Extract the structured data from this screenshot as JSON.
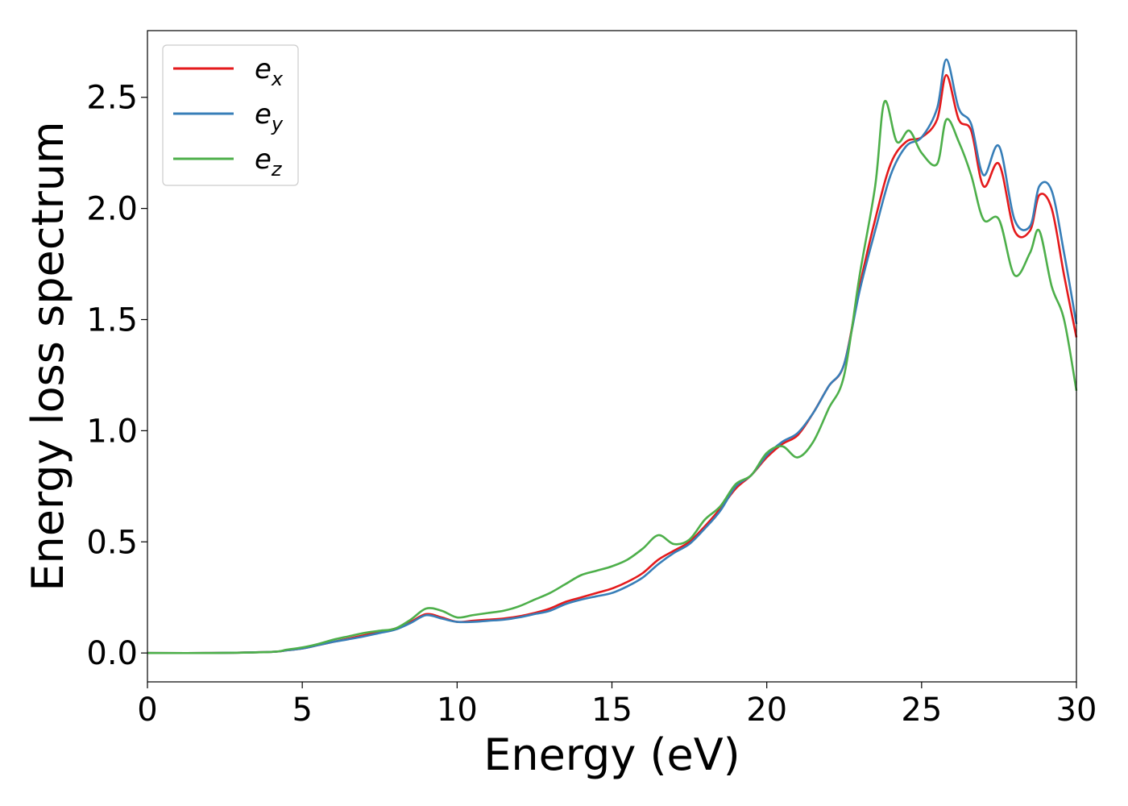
{
  "chart_data": {
    "type": "line",
    "xlabel": "Energy (eV)",
    "ylabel": "Energy loss spectrum",
    "xlim": [
      0,
      30
    ],
    "ylim": [
      -0.13,
      2.8
    ],
    "xticks": [
      "0",
      "5",
      "10",
      "15",
      "20",
      "25",
      "30"
    ],
    "yticks": [
      "0.0",
      "0.5",
      "1.0",
      "1.5",
      "2.0",
      "2.5"
    ],
    "grid": false,
    "legend_position": "top-left",
    "series": [
      {
        "name": "e",
        "sub": "x",
        "color": "#e41a1c",
        "x": [
          0,
          2,
          4,
          4.5,
          5,
          5.5,
          6,
          6.5,
          7,
          7.5,
          8,
          8.5,
          9,
          9.5,
          10,
          10.5,
          11,
          11.5,
          12,
          12.5,
          13,
          13.5,
          14,
          14.5,
          15,
          15.5,
          16,
          16.5,
          17,
          17.5,
          18,
          18.5,
          19,
          19.5,
          20,
          20.5,
          21,
          21.5,
          22,
          22.5,
          23,
          23.5,
          24,
          24.5,
          25,
          25.5,
          25.8,
          26.2,
          26.6,
          27,
          27.5,
          28,
          28.5,
          28.8,
          29.2,
          29.6,
          30
        ],
        "y": [
          0,
          0,
          0.005,
          0.012,
          0.02,
          0.035,
          0.05,
          0.065,
          0.08,
          0.095,
          0.11,
          0.14,
          0.175,
          0.16,
          0.14,
          0.145,
          0.15,
          0.155,
          0.165,
          0.18,
          0.2,
          0.23,
          0.25,
          0.27,
          0.29,
          0.32,
          0.36,
          0.42,
          0.46,
          0.5,
          0.57,
          0.65,
          0.74,
          0.8,
          0.88,
          0.94,
          0.98,
          1.08,
          1.2,
          1.3,
          1.65,
          1.95,
          2.2,
          2.3,
          2.32,
          2.4,
          2.6,
          2.4,
          2.35,
          2.1,
          2.2,
          1.9,
          1.9,
          2.06,
          2.0,
          1.7,
          1.42
        ]
      },
      {
        "name": "e",
        "sub": "y",
        "color": "#377eb8",
        "x": [
          0,
          2,
          4,
          4.5,
          5,
          5.5,
          6,
          6.5,
          7,
          7.5,
          8,
          8.5,
          9,
          9.5,
          10,
          10.5,
          11,
          11.5,
          12,
          12.5,
          13,
          13.5,
          14,
          14.5,
          15,
          15.5,
          16,
          16.5,
          17,
          17.5,
          18,
          18.5,
          19,
          19.5,
          20,
          20.5,
          21,
          21.5,
          22,
          22.5,
          23,
          23.5,
          24,
          24.5,
          25,
          25.5,
          25.8,
          26.2,
          26.6,
          27,
          27.5,
          28,
          28.5,
          28.8,
          29.2,
          29.6,
          30
        ],
        "y": [
          0,
          0,
          0.005,
          0.012,
          0.02,
          0.035,
          0.05,
          0.062,
          0.075,
          0.09,
          0.105,
          0.135,
          0.17,
          0.155,
          0.14,
          0.14,
          0.145,
          0.15,
          0.16,
          0.175,
          0.19,
          0.22,
          0.24,
          0.255,
          0.27,
          0.3,
          0.34,
          0.4,
          0.45,
          0.49,
          0.56,
          0.64,
          0.75,
          0.8,
          0.89,
          0.95,
          0.99,
          1.08,
          1.2,
          1.3,
          1.63,
          1.9,
          2.15,
          2.28,
          2.32,
          2.45,
          2.67,
          2.45,
          2.38,
          2.15,
          2.28,
          1.95,
          1.92,
          2.1,
          2.08,
          1.8,
          1.48
        ]
      },
      {
        "name": "e",
        "sub": "z",
        "color": "#4daf4a",
        "x": [
          0,
          2,
          4,
          4.5,
          5,
          5.5,
          6,
          6.5,
          7,
          7.5,
          8,
          8.5,
          9,
          9.5,
          10,
          10.5,
          11,
          11.5,
          12,
          12.5,
          13,
          13.5,
          14,
          14.5,
          15,
          15.5,
          16,
          16.5,
          17,
          17.5,
          18,
          18.5,
          19,
          19.5,
          20,
          20.5,
          21,
          21.5,
          22,
          22.5,
          23,
          23.5,
          23.8,
          24.2,
          24.6,
          25,
          25.5,
          25.8,
          26.2,
          26.6,
          27,
          27.5,
          28,
          28.5,
          28.8,
          29.2,
          29.6,
          30
        ],
        "y": [
          0,
          0,
          0.005,
          0.015,
          0.025,
          0.04,
          0.06,
          0.075,
          0.09,
          0.1,
          0.11,
          0.15,
          0.2,
          0.19,
          0.16,
          0.17,
          0.18,
          0.19,
          0.21,
          0.24,
          0.27,
          0.31,
          0.35,
          0.37,
          0.39,
          0.42,
          0.47,
          0.53,
          0.49,
          0.51,
          0.6,
          0.66,
          0.76,
          0.8,
          0.9,
          0.93,
          0.88,
          0.95,
          1.1,
          1.25,
          1.7,
          2.1,
          2.48,
          2.3,
          2.35,
          2.25,
          2.2,
          2.4,
          2.3,
          2.15,
          1.95,
          1.95,
          1.7,
          1.8,
          1.9,
          1.65,
          1.5,
          1.18
        ]
      }
    ]
  }
}
